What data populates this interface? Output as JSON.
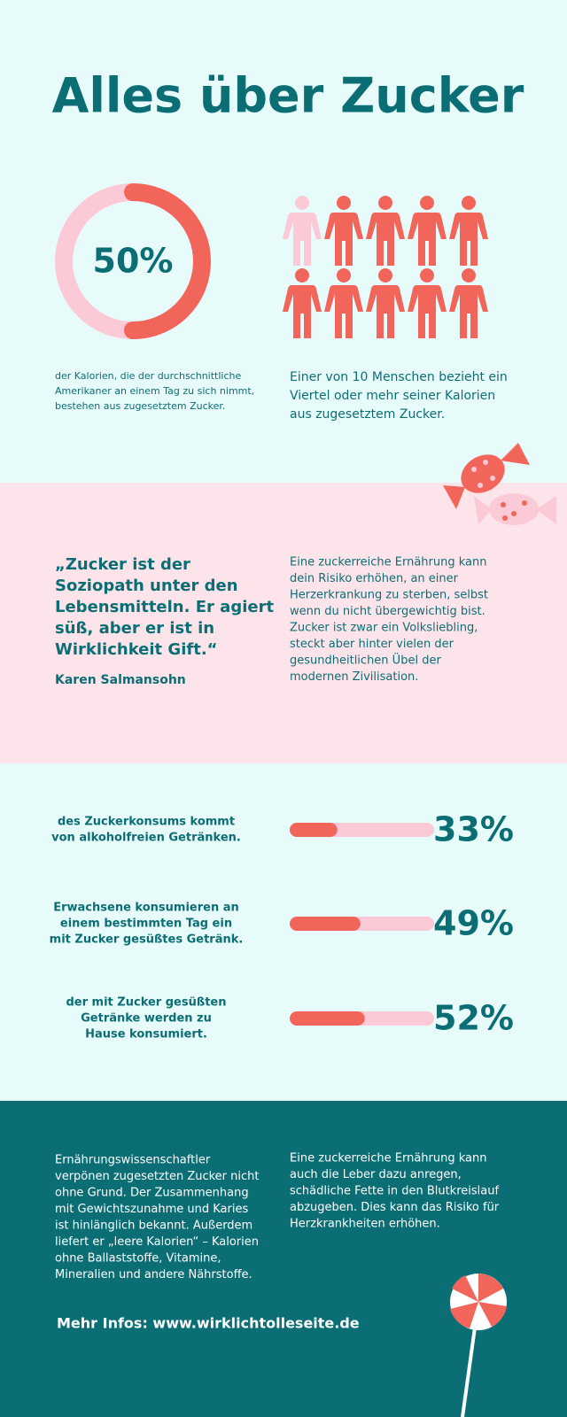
{
  "title": "Alles über Zucker",
  "donut": {
    "value": 50,
    "label": "50%",
    "caption": [
      "der Kalorien, die der durchschnittliche",
      "Amerikaner an einem Tag zu sich nimmt,",
      "bestehen aus zugesetztem Zucker."
    ]
  },
  "people": {
    "caption": [
      "Einer von 10 Menschen bezieht ein",
      "Viertel oder mehr seiner Kalorien",
      "aus zugesetztem Zucker."
    ]
  },
  "quote": {
    "lines": [
      "„Zucker ist der",
      "Soziopath unter den",
      "Lebensmitteln. Er agiert",
      "süß, aber er ist in",
      "Wirklichkeit Gift.“"
    ],
    "author": "Karen Salmansohn"
  },
  "quote_text": {
    "lines": [
      "Eine zuckerreiche Ernährung kann",
      "dein Risiko erhöhen, an einer",
      "Herzerkrankung zu sterben, selbst",
      "wenn du nicht übergewichtig bist.",
      "Zucker ist zwar ein Volksliebling,",
      "steckt aber hinter vielen der",
      "gesundheitlichen Übel der",
      "modernen Zivilisation."
    ]
  },
  "stats": [
    {
      "lines": [
        "des Zuckerkonsums kommt",
        "von alkoholfreien Getränken."
      ],
      "value": 33,
      "label": "33%"
    },
    {
      "lines": [
        "Erwachsene konsumieren an",
        "einem bestimmten Tag ein",
        "mit Zucker gesüßtes Getränk."
      ],
      "value": 49,
      "label": "49%"
    },
    {
      "lines": [
        "der mit Zucker gesüßten",
        "Getränke werden zu",
        "Hause konsumiert."
      ],
      "value": 52,
      "label": "52%"
    }
  ],
  "footer": {
    "left": [
      "Ernährungswissenschaftler",
      "verpönen zugesetzten Zucker nicht",
      "ohne Grund. Der Zusammenhang",
      "mit Gewichtszunahme und Karies",
      "ist hinlänglich bekannt. Außerdem",
      "liefert er „leere Kalorien“ – Kalorien",
      "ohne Ballaststoffe, Vitamine,",
      "Mineralien und andere Nährstoffe."
    ],
    "right": [
      "Eine zuckerreiche Ernährung kann",
      "auch die Leber dazu anregen,",
      "schädliche Fette in den Blutkreislauf",
      "abzugeben. Dies kann das Risiko für",
      "Herzkrankheiten erhöhen."
    ],
    "link": "Mehr Infos: www.wirklichtolleseite.de"
  }
}
